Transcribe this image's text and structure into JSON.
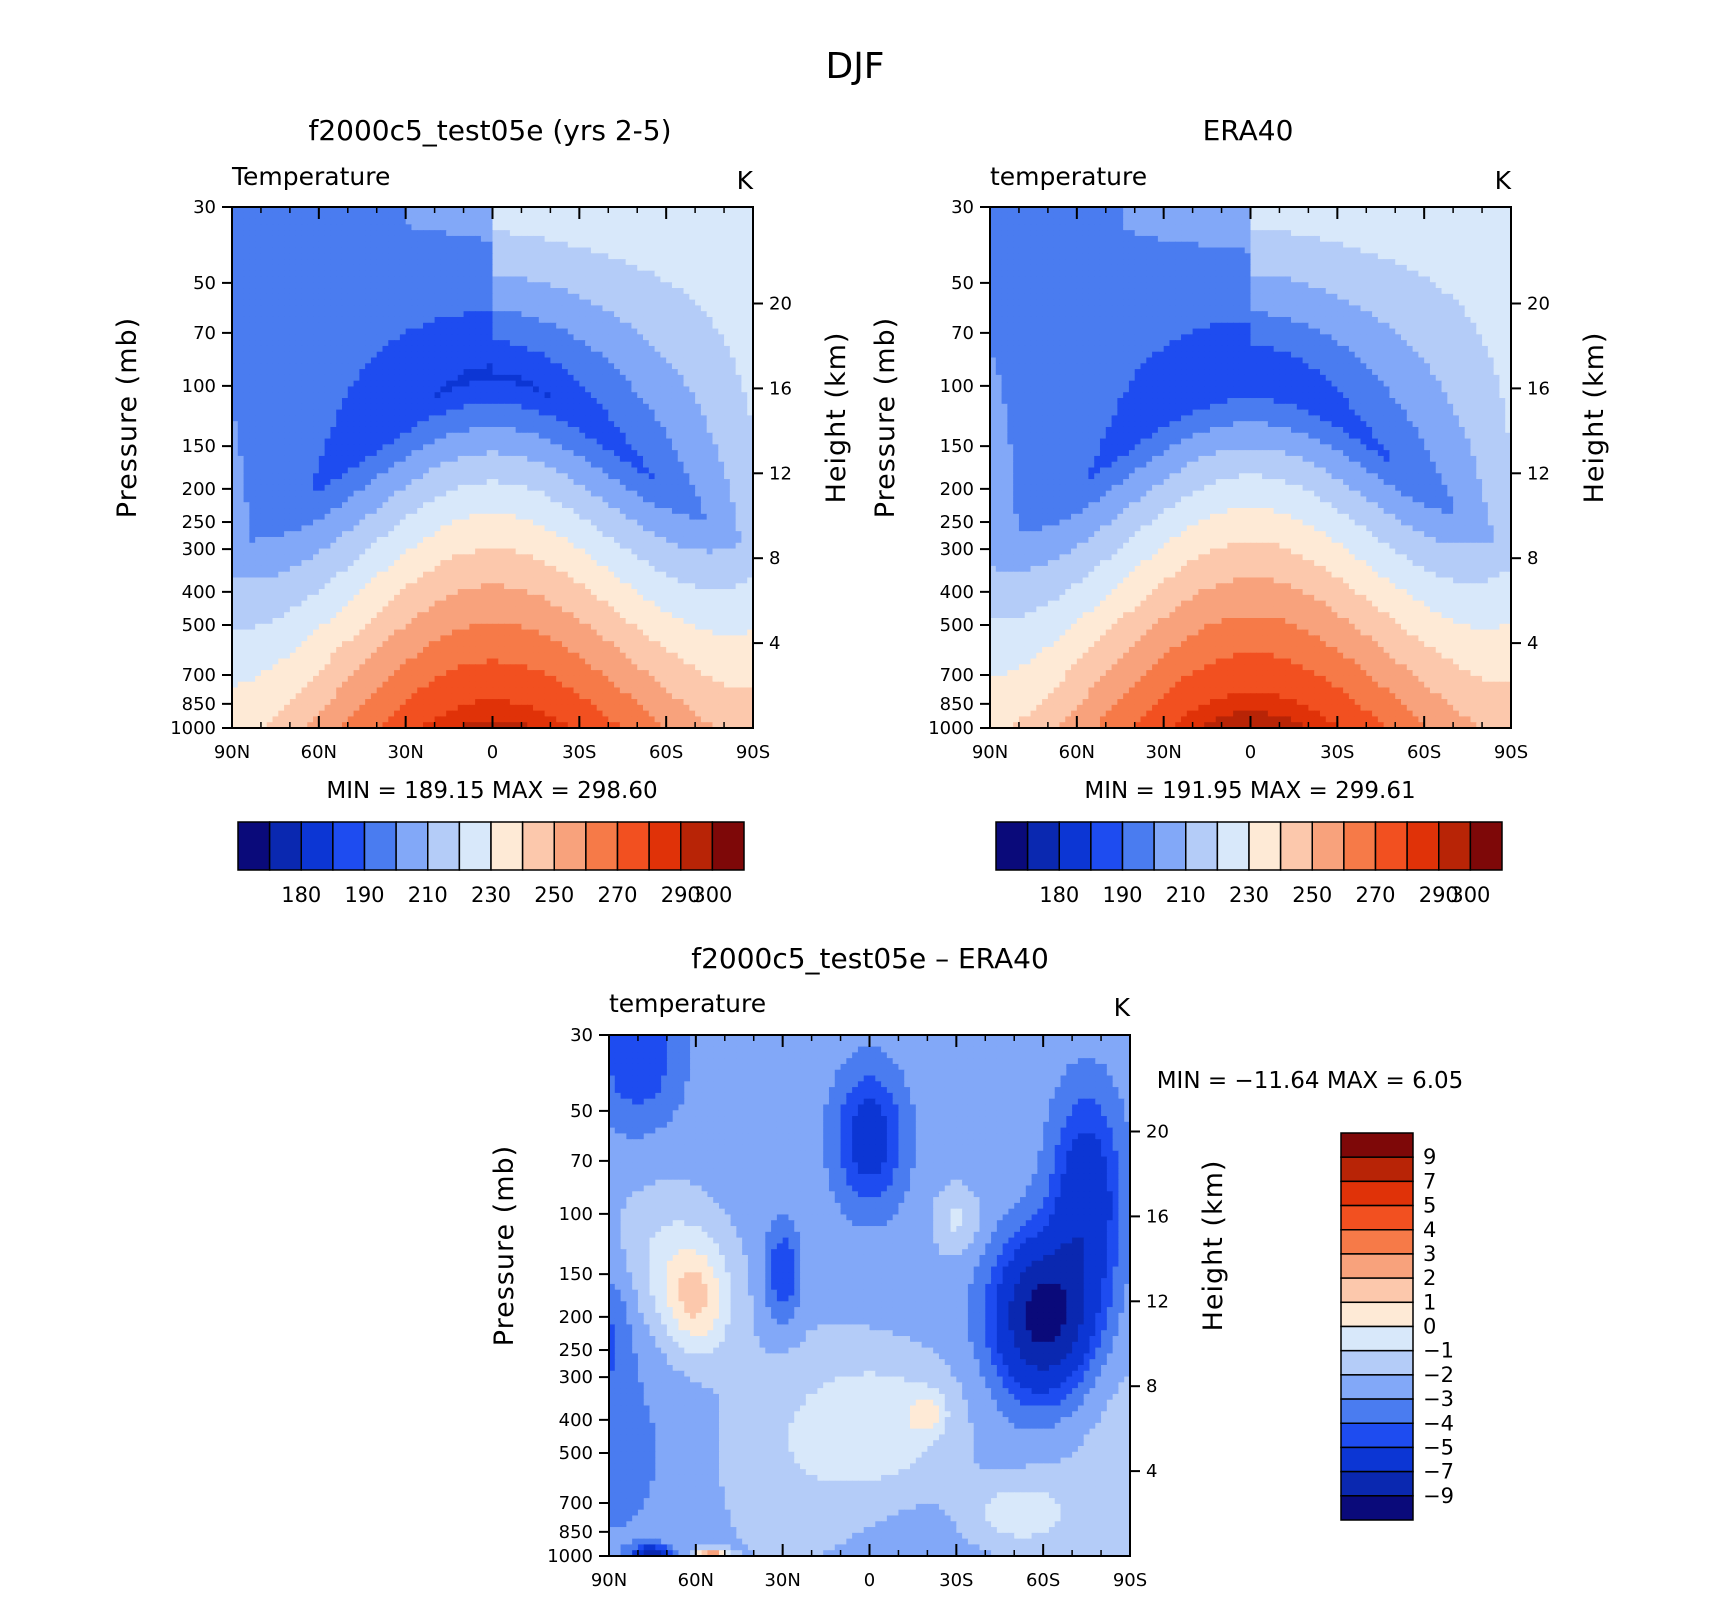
{
  "figure_title": "DJF",
  "lat_ticks": [
    "90N",
    "60N",
    "30N",
    "0",
    "30S",
    "60S",
    "90S"
  ],
  "pressure_ticks": [
    30,
    50,
    70,
    100,
    150,
    200,
    250,
    300,
    400,
    500,
    700,
    850,
    1000
  ],
  "height_ticks": [
    4,
    8,
    12,
    16,
    20
  ],
  "colors": {
    "abs": [
      "#0a0a7a",
      "#0a28b0",
      "#0c36d4",
      "#1e4cf0",
      "#4a7cf0",
      "#82a8f8",
      "#b4ccf8",
      "#d8e8fa",
      "#feead6",
      "#fcc8ac",
      "#f8a27c",
      "#f67a48",
      "#f25020",
      "#e03208",
      "#b82406",
      "#7e0808"
    ],
    "diff": [
      "#0a0a7a",
      "#0a28b0",
      "#0c36d4",
      "#1e4cf0",
      "#4a7cf0",
      "#82a8f8",
      "#b4ccf8",
      "#d8e8fa",
      "#feead6",
      "#fcc8ac",
      "#f8a27c",
      "#f67a48",
      "#f25020",
      "#e03208",
      "#b82406",
      "#7e0808"
    ]
  },
  "chart_data": [
    {
      "type": "heatmap",
      "title": "f2000c5_test05e (yrs 2-5)",
      "left_label": "Temperature",
      "units": "K",
      "ylabel": "Pressure (mb)",
      "ylabel_right": "Height (km)",
      "xlim": [
        90,
        -90
      ],
      "ylim": [
        1000,
        30
      ],
      "y_scale": "log",
      "stats": "MIN =  189.15   MAX =  298.60",
      "colorbar": {
        "orientation": "horizontal",
        "levels": [
          175,
          180,
          185,
          190,
          200,
          210,
          220,
          230,
          240,
          250,
          260,
          270,
          280,
          290,
          295,
          300,
          305
        ],
        "labels": [
          "180",
          "190",
          "210",
          "230",
          "250",
          "270",
          "290",
          "300"
        ]
      },
      "field": {
        "kind": "absolute",
        "surface_t_equator": 297,
        "surface_t_pole_n": 247,
        "surface_t_pole_s": 256,
        "lapse_p": 0.56,
        "trop_t_equator": 194,
        "trop_p": 95,
        "strat_n": 212,
        "strat_s": 232
      }
    },
    {
      "type": "heatmap",
      "title": "ERA40",
      "left_label": "temperature",
      "units": "K",
      "ylabel": "Pressure (mb)",
      "ylabel_right": "Height (km)",
      "xlim": [
        90,
        -90
      ],
      "ylim": [
        1000,
        30
      ],
      "y_scale": "log",
      "stats": "MIN =  191.95   MAX =  299.61",
      "colorbar": {
        "orientation": "horizontal",
        "levels": [
          175,
          180,
          185,
          190,
          200,
          210,
          220,
          230,
          240,
          250,
          260,
          270,
          280,
          290,
          295,
          300,
          305
        ],
        "labels": [
          "180",
          "190",
          "210",
          "230",
          "250",
          "270",
          "290",
          "300"
        ]
      },
      "field": {
        "kind": "absolute",
        "surface_t_equator": 299,
        "surface_t_pole_n": 248,
        "surface_t_pole_s": 257,
        "lapse_p": 0.56,
        "trop_t_equator": 196,
        "trop_p": 95,
        "strat_n": 213,
        "strat_s": 231
      }
    },
    {
      "type": "heatmap",
      "title": "f2000c5_test05e – ERA40",
      "left_label": "temperature",
      "units": "K",
      "ylabel": "Pressure (mb)",
      "ylabel_right": "Height (km)",
      "xlim": [
        90,
        -90
      ],
      "ylim": [
        1000,
        30
      ],
      "y_scale": "log",
      "stats": "MIN = −11.64    MAX =     6.05",
      "colorbar": {
        "orientation": "vertical",
        "levels": [
          -11,
          -9,
          -7,
          -5,
          -4,
          -3,
          -2,
          -1,
          0,
          1,
          2,
          3,
          4,
          5,
          7,
          9,
          11
        ],
        "labels": [
          "9",
          "7",
          "5",
          "4",
          "3",
          "2",
          "1",
          "0",
          "−1",
          "−2",
          "−3",
          "−4",
          "−5",
          "−7",
          "−9"
        ]
      },
      "field": {
        "kind": "difference",
        "background": -2.4,
        "features": [
          {
            "lat": 60,
            "p": 180,
            "amp": 3.2,
            "slat": 12,
            "slogp": 0.16
          },
          {
            "lat": 70,
            "p": 130,
            "amp": 1.4,
            "slat": 18,
            "slogp": 0.2
          },
          {
            "lat": -60,
            "p": 200,
            "amp": -7.5,
            "slat": 16,
            "slogp": 0.22
          },
          {
            "lat": -75,
            "p": 90,
            "amp": -4,
            "slat": 12,
            "slogp": 0.3
          },
          {
            "lat": 0,
            "p": 60,
            "amp": -3.5,
            "slat": 12,
            "slogp": 0.2
          },
          {
            "lat": 30,
            "p": 150,
            "amp": -2.6,
            "slat": 6,
            "slogp": 0.15
          },
          {
            "lat": 80,
            "p": 35,
            "amp": -2.5,
            "slat": 15,
            "slogp": 0.2
          },
          {
            "lat": 90,
            "p": 220,
            "amp": -1.5,
            "slat": 8,
            "slogp": 0.2
          },
          {
            "lat": -10,
            "p": 420,
            "amp": 2.6,
            "slat": 30,
            "slogp": 0.22
          },
          {
            "lat": -20,
            "p": 380,
            "amp": 1.6,
            "slat": 6,
            "slogp": 0.06
          },
          {
            "lat": -30,
            "p": 105,
            "amp": 1.6,
            "slat": 8,
            "slogp": 0.1
          },
          {
            "lat": -50,
            "p": 750,
            "amp": 2.2,
            "slat": 20,
            "slogp": 0.12
          },
          {
            "lat": 75,
            "p": 1000,
            "amp": -7,
            "slat": 6,
            "slogp": 0.025
          },
          {
            "lat": 55,
            "p": 1000,
            "amp": 6,
            "slat": 5,
            "slogp": 0.02
          }
        ]
      }
    }
  ]
}
